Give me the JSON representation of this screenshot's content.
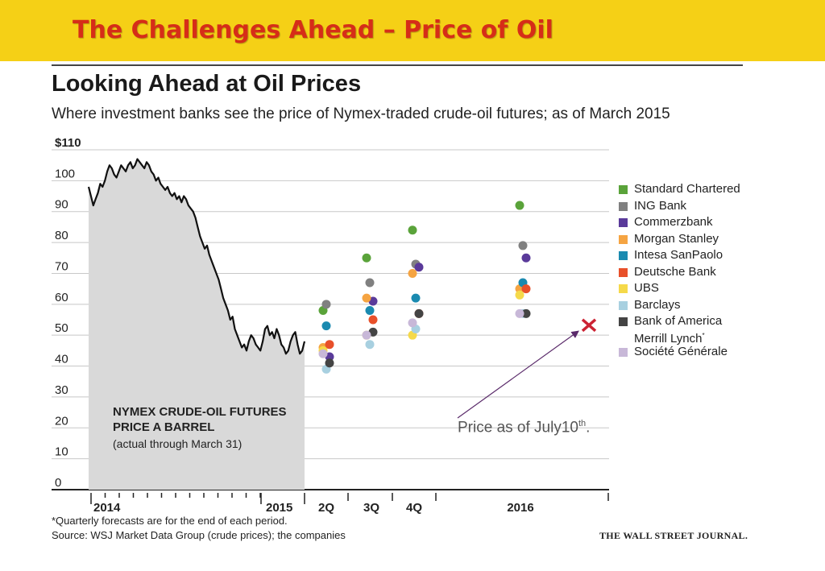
{
  "slide": {
    "title": "The Challenges Ahead – Price of Oil",
    "annotation_text": "Price as of July10",
    "annotation_sup": "th",
    "annotation_suffix": "."
  },
  "colors": {
    "banner": "#f5d016",
    "banner_title": "#d62d18",
    "price_line": "#111111",
    "history_fill": "#d9d9d9",
    "marker": "#cc2233",
    "arrow": "#5a2a6a"
  },
  "chart_data": {
    "type": "scatter",
    "title": "Looking Ahead at Oil Prices",
    "subtitle": "Where investment banks see the price of Nymex-traded crude-oil futures; as of March 2015",
    "y_ticks": [
      "$110",
      "100",
      "90",
      "80",
      "70",
      "60",
      "50",
      "40",
      "30",
      "20",
      "10",
      "0"
    ],
    "ylim": [
      0,
      110
    ],
    "x_labels": [
      "2014",
      "2015",
      "2Q",
      "3Q",
      "4Q",
      "2016"
    ],
    "history_label": [
      "NYMEX CRUDE-OIL FUTURES",
      "PRICE A BARREL"
    ],
    "history_note": "(actual through March 31)",
    "history": [
      98,
      95,
      92,
      94,
      96,
      99,
      98,
      100,
      103,
      105,
      104,
      102,
      101,
      103,
      105,
      104,
      103,
      105,
      106,
      104,
      105,
      107,
      106,
      105,
      104,
      106,
      105,
      103,
      102,
      100,
      101,
      99,
      98,
      97,
      98,
      96,
      95,
      96,
      94,
      95,
      93,
      95,
      94,
      92,
      91,
      90,
      88,
      85,
      82,
      80,
      78,
      79,
      76,
      74,
      72,
      70,
      68,
      65,
      62,
      60,
      58,
      55,
      56,
      52,
      50,
      48,
      46,
      47,
      45,
      48,
      50,
      49,
      47,
      46,
      45,
      48,
      52,
      53,
      50,
      51,
      49,
      52,
      50,
      47,
      46,
      44,
      45,
      48,
      50,
      51,
      47,
      44,
      45,
      48
    ],
    "series": [
      {
        "name": "Standard Chartered",
        "color": "#5aa33a",
        "values": [
          58,
          75,
          84,
          92
        ]
      },
      {
        "name": "ING Bank",
        "color": "#808080",
        "values": [
          60,
          67,
          73,
          79
        ]
      },
      {
        "name": "Commerzbank",
        "color": "#5a3a9a",
        "values": [
          43,
          61,
          72,
          75
        ]
      },
      {
        "name": "Morgan Stanley",
        "color": "#f5a442",
        "values": [
          46,
          62,
          70,
          65
        ]
      },
      {
        "name": "Intesa SanPaolo",
        "color": "#1a8ab0",
        "values": [
          53,
          58,
          62,
          67
        ]
      },
      {
        "name": "Deutsche Bank",
        "color": "#e8502a",
        "values": [
          47,
          55,
          57,
          65
        ]
      },
      {
        "name": "UBS",
        "color": "#f5d94a",
        "values": [
          45,
          50,
          50,
          63
        ]
      },
      {
        "name": "Barclays",
        "color": "#a8d0e0",
        "values": [
          39,
          47,
          52,
          57
        ]
      },
      {
        "name": "Bank of America",
        "name_line2": "Merrill Lynch",
        "name_sup": "*",
        "color": "#444444",
        "values": [
          41,
          51,
          57,
          57
        ]
      },
      {
        "name": "Société Générale",
        "color": "#c8b8d8",
        "values": [
          44,
          50,
          54,
          57
        ]
      }
    ],
    "marker_value": 48,
    "footnote": "*Quarterly forecasts are for the end of each period.",
    "source": "Source: WSJ Market Data Group (crude prices); the companies",
    "credit": "THE WALL STREET JOURNAL.",
    "legend_placement": "right"
  }
}
